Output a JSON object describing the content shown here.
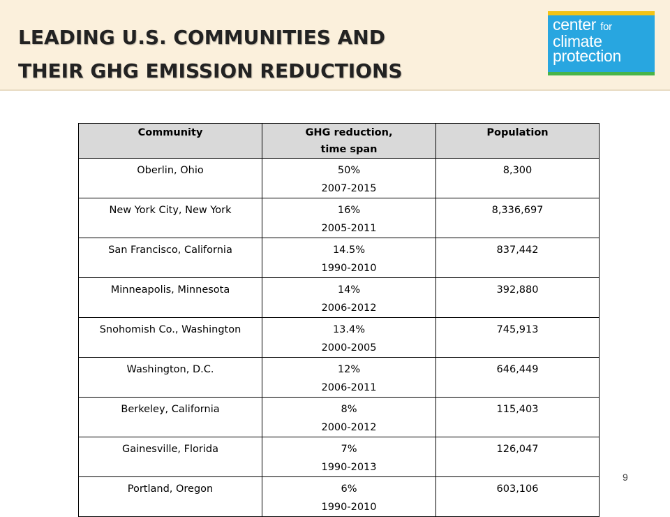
{
  "header": {
    "title_line1": "LEADING U.S. COMMUNITIES AND",
    "title_line2": "THEIR GHG EMISSION REDUCTIONS",
    "logo": {
      "line1a": "center",
      "line1b": "for",
      "line2": "climate",
      "line3": "protection"
    }
  },
  "table": {
    "columns": {
      "community": "Community",
      "reduction_line1": "GHG reduction,",
      "reduction_line2": "time span",
      "population": "Population"
    },
    "rows": [
      {
        "community": "Oberlin, Ohio",
        "reduction": "50%",
        "span": "2007-2015",
        "population": "8,300"
      },
      {
        "community": "New York City, New York",
        "reduction": "16%",
        "span": "2005-2011",
        "population": "8,336,697"
      },
      {
        "community": "San Francisco, California",
        "reduction": "14.5%",
        "span": "1990-2010",
        "population": "837,442"
      },
      {
        "community": "Minneapolis, Minnesota",
        "reduction": "14%",
        "span": "2006-2012",
        "population": "392,880"
      },
      {
        "community": "Snohomish Co., Washington",
        "reduction": "13.4%",
        "span": "2000-2005",
        "population": "745,913"
      },
      {
        "community": "Washington, D.C.",
        "reduction": "12%",
        "span": "2006-2011",
        "population": "646,449"
      },
      {
        "community": "Berkeley, California",
        "reduction": "8%",
        "span": "2000-2012",
        "population": "115,403"
      },
      {
        "community": "Gainesville, Florida",
        "reduction": "7%",
        "span": "1990-2013",
        "population": "126,047"
      },
      {
        "community": "Portland, Oregon",
        "reduction": "6%",
        "span": "1990-2010",
        "population": "603,106"
      }
    ]
  },
  "footer": {
    "page_number": "9"
  }
}
